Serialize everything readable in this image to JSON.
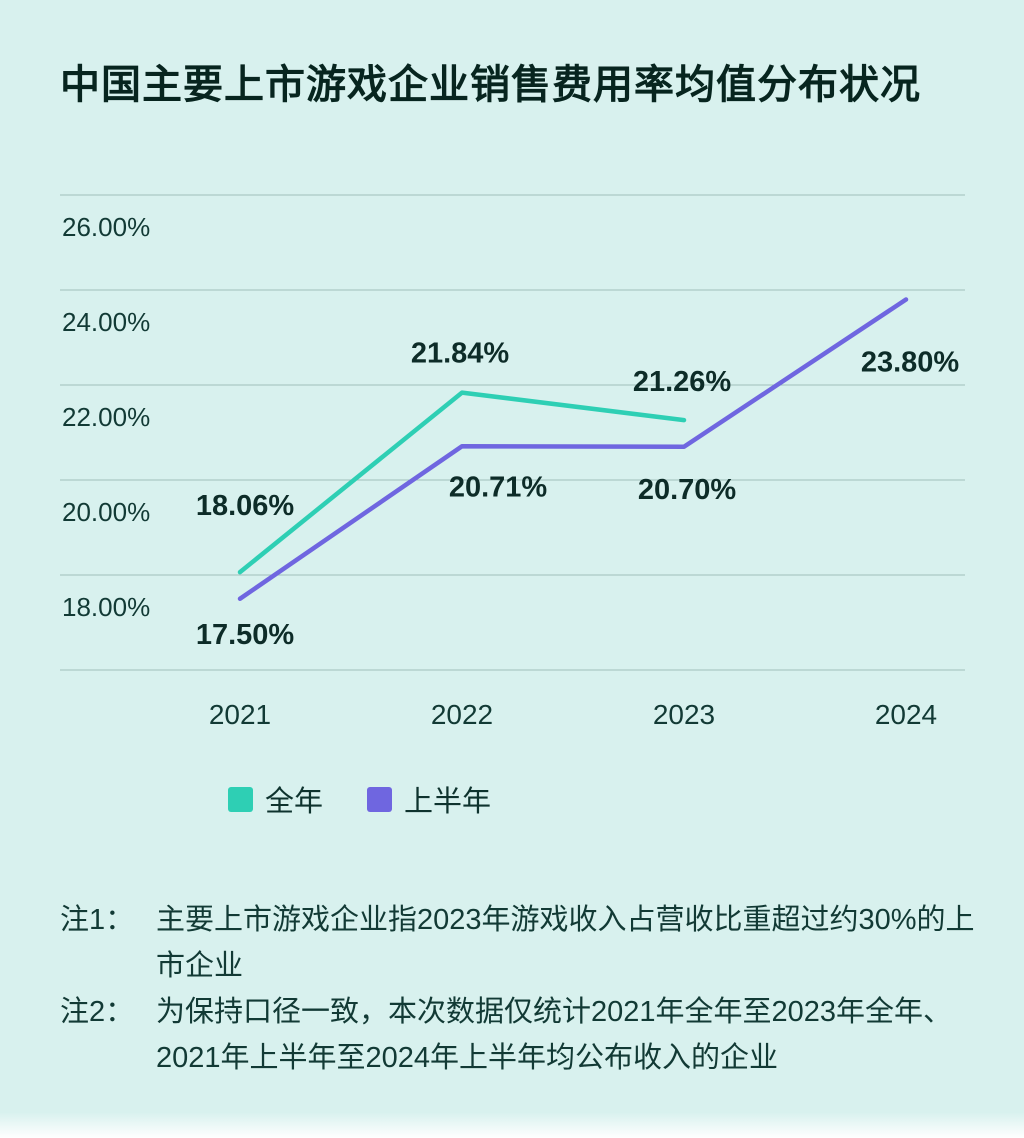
{
  "page": {
    "background": "#d8f1ee"
  },
  "title": "中国主要上市游戏企业销售费用率均值分布状况",
  "legend": [
    {
      "label": "全年",
      "color": "#2ecfb4"
    },
    {
      "label": "上半年",
      "color": "#6f66e0"
    }
  ],
  "notes": [
    {
      "label": "注1：",
      "text": "主要上市游戏企业指2023年游戏收入占营收比重超过约30%的上市企业"
    },
    {
      "label": "注2：",
      "text": "为保持口径一致，本次数据仅统计2021年全年至2023年全年、2021年上半年至2024年上半年均公布收入的企业"
    }
  ],
  "chart_data": {
    "type": "line",
    "categories": [
      "2021",
      "2022",
      "2023",
      "2024"
    ],
    "series": [
      {
        "name": "全年",
        "color": "#2ecfb4",
        "values": [
          18.06,
          21.84,
          21.26,
          null
        ],
        "labels": [
          "18.06%",
          "21.84%",
          "21.26%",
          ""
        ]
      },
      {
        "name": "上半年",
        "color": "#6f66e0",
        "values": [
          17.5,
          20.71,
          20.7,
          23.8
        ],
        "labels": [
          "17.50%",
          "20.71%",
          "20.70%",
          "23.80%"
        ]
      }
    ],
    "yticks": [
      {
        "value": 26,
        "label": "26.00%"
      },
      {
        "value": 24,
        "label": "24.00%"
      },
      {
        "value": 22,
        "label": "22.00%"
      },
      {
        "value": 20,
        "label": "20.00%"
      },
      {
        "value": 18,
        "label": "18.00%"
      },
      {
        "value": 16,
        "label": ""
      }
    ],
    "ylim": [
      16,
      27
    ],
    "grid": true,
    "legend_position": "bottom",
    "xlabel": "",
    "ylabel": ""
  }
}
